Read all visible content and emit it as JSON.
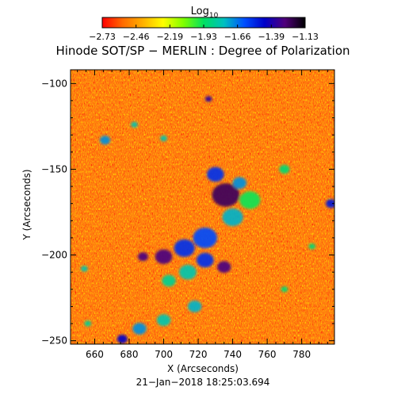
{
  "colorbar": {
    "label_main": "Log",
    "label_sub": "10",
    "ticks": [
      "−2.73",
      "−2.46",
      "−2.19",
      "−1.93",
      "−1.66",
      "−1.39",
      "−1.13"
    ],
    "range": [
      -2.73,
      -1.13
    ],
    "colormap": [
      "#ff0000",
      "#ff6a00",
      "#ffb000",
      "#ffff00",
      "#7fff00",
      "#00e060",
      "#00c0c0",
      "#0050ff",
      "#0000c8",
      "#50007a",
      "#000000"
    ]
  },
  "chart_data": {
    "type": "heatmap",
    "title": "Hinode SOT/SP − MERLIN : Degree of Polarization",
    "xlabel": "X (Arcseconds)",
    "ylabel": "Y (Arcseconds)",
    "xlim": [
      646,
      799
    ],
    "ylim": [
      -252,
      -92
    ],
    "xticks": [
      660,
      680,
      700,
      720,
      740,
      760,
      780
    ],
    "yticks": [
      -100,
      -150,
      -200,
      -250
    ],
    "background_color": "#ff7a10",
    "blobs": [
      {
        "x": 736,
        "y": -165,
        "r": 8,
        "value": -1.25
      },
      {
        "x": 730,
        "y": -153,
        "r": 5,
        "value": -1.55
      },
      {
        "x": 744,
        "y": -158,
        "r": 4,
        "value": -1.7
      },
      {
        "x": 740,
        "y": -178,
        "r": 6,
        "value": -1.75
      },
      {
        "x": 750,
        "y": -168,
        "r": 6,
        "value": -1.95
      },
      {
        "x": 724,
        "y": -190,
        "r": 7,
        "value": -1.6
      },
      {
        "x": 712,
        "y": -196,
        "r": 6,
        "value": -1.55
      },
      {
        "x": 700,
        "y": -201,
        "r": 5,
        "value": -1.3
      },
      {
        "x": 688,
        "y": -201,
        "r": 3,
        "value": -1.3
      },
      {
        "x": 724,
        "y": -203,
        "r": 5,
        "value": -1.55
      },
      {
        "x": 735,
        "y": -207,
        "r": 4,
        "value": -1.3
      },
      {
        "x": 714,
        "y": -210,
        "r": 5,
        "value": -1.8
      },
      {
        "x": 703,
        "y": -215,
        "r": 4,
        "value": -1.85
      },
      {
        "x": 718,
        "y": -230,
        "r": 4,
        "value": -1.75
      },
      {
        "x": 700,
        "y": -238,
        "r": 4,
        "value": -1.8
      },
      {
        "x": 686,
        "y": -243,
        "r": 4,
        "value": -1.7
      },
      {
        "x": 676,
        "y": -249,
        "r": 3,
        "value": -1.45
      },
      {
        "x": 726,
        "y": -109,
        "r": 2,
        "value": -1.35
      },
      {
        "x": 666,
        "y": -133,
        "r": 3,
        "value": -1.7
      },
      {
        "x": 683,
        "y": -124,
        "r": 2,
        "value": -1.8
      },
      {
        "x": 700,
        "y": -132,
        "r": 2,
        "value": -1.8
      },
      {
        "x": 797,
        "y": -170,
        "r": 3,
        "value": -1.5
      },
      {
        "x": 770,
        "y": -150,
        "r": 3,
        "value": -1.9
      },
      {
        "x": 654,
        "y": -208,
        "r": 2,
        "value": -1.8
      },
      {
        "x": 656,
        "y": -240,
        "r": 2,
        "value": -1.85
      },
      {
        "x": 786,
        "y": -195,
        "r": 2,
        "value": -1.9
      },
      {
        "x": 770,
        "y": -220,
        "r": 2,
        "value": -1.9
      }
    ]
  },
  "timestamp": "21−Jan−2018 18:25:03.694"
}
